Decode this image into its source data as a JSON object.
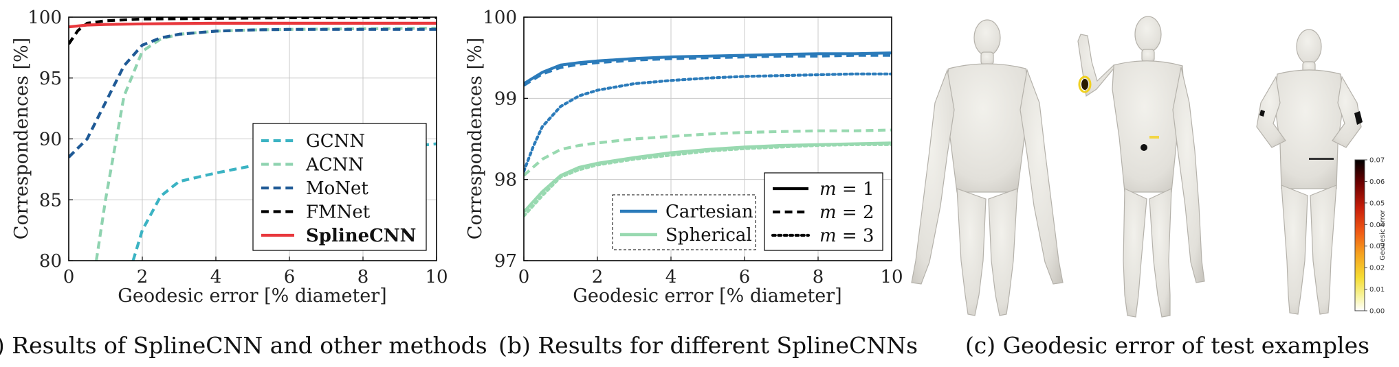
{
  "chart_data": [
    {
      "type": "line",
      "xlabel": "Geodesic error [% diameter]",
      "ylabel": "Correspondences [%]",
      "xlim": [
        0,
        10
      ],
      "ylim": [
        80,
        100
      ],
      "x_ticks": [
        "0",
        "2",
        "4",
        "6",
        "8",
        "10"
      ],
      "y_ticks": [
        "80",
        "85",
        "90",
        "95",
        "100"
      ],
      "grid": true,
      "legend_position": "bottom-right",
      "caption": "(a) Results of SplineCNN and other methods",
      "series": [
        {
          "name": "GCNN",
          "color": "#3bb3c3",
          "dash": "dashed",
          "x": [
            1.75,
            2,
            2.5,
            3,
            4,
            5,
            6,
            7,
            8,
            9,
            10
          ],
          "y": [
            80,
            82.5,
            85.3,
            86.5,
            87.2,
            87.8,
            88.3,
            88.7,
            89.0,
            89.3,
            89.6
          ]
        },
        {
          "name": "ACNN",
          "color": "#8fd3b0",
          "dash": "dashed",
          "x": [
            0.75,
            1,
            1.5,
            2,
            2.5,
            3,
            4,
            5,
            6,
            8,
            10
          ],
          "y": [
            80,
            85,
            93.5,
            97.2,
            98.2,
            98.6,
            98.85,
            98.95,
            99.0,
            99.05,
            99.1
          ]
        },
        {
          "name": "MoNet",
          "color": "#1f5a96",
          "dash": "dashed",
          "x": [
            0,
            0.5,
            1,
            1.5,
            2,
            2.5,
            3,
            4,
            5,
            6,
            8,
            10
          ],
          "y": [
            88.5,
            90,
            93,
            96,
            97.7,
            98.3,
            98.6,
            98.85,
            98.95,
            99.0,
            99.0,
            99.0
          ]
        },
        {
          "name": "FMNet",
          "color": "#000000",
          "dash": "dashed",
          "x": [
            0,
            0.25,
            0.5,
            1,
            2,
            4,
            6,
            8,
            10
          ],
          "y": [
            97.8,
            98.9,
            99.5,
            99.7,
            99.85,
            99.9,
            99.95,
            99.95,
            99.97
          ]
        },
        {
          "name": "SplineCNN",
          "color": "#e8383d",
          "dash": "solid",
          "bold": true,
          "x": [
            0,
            0.5,
            1,
            2,
            4,
            6,
            8,
            10
          ],
          "y": [
            99.2,
            99.35,
            99.4,
            99.45,
            99.5,
            99.5,
            99.5,
            99.5
          ]
        }
      ]
    },
    {
      "type": "line",
      "xlabel": "Geodesic error [% diameter]",
      "ylabel": "Correspondences [%]",
      "xlim": [
        0,
        10
      ],
      "ylim": [
        97,
        100
      ],
      "x_ticks": [
        "0",
        "2",
        "4",
        "6",
        "8",
        "10"
      ],
      "y_ticks": [
        "97",
        "98",
        "99",
        "100"
      ],
      "grid": true,
      "legend_position": "bottom",
      "caption": "(b) Results for different SplineCNNs",
      "color_legend": [
        {
          "name": "Cartesian",
          "color": "#2b7bba"
        },
        {
          "name": "Spherical",
          "color": "#98d9b0"
        }
      ],
      "style_legend": [
        {
          "name": "m = 1",
          "var": "m",
          "eq": "= 1",
          "dash": "solid"
        },
        {
          "name": "m = 2",
          "var": "m",
          "eq": "= 2",
          "dash": "dashed"
        },
        {
          "name": "m = 3",
          "var": "m",
          "eq": "= 3",
          "dash": "dotted"
        }
      ],
      "series": [
        {
          "name": "Cartesian, m = 1",
          "color": "#2b7bba",
          "dash": "solid",
          "x": [
            0,
            0.5,
            1,
            1.5,
            2,
            3,
            4,
            5,
            6,
            7,
            8,
            9,
            10
          ],
          "y": [
            99.18,
            99.32,
            99.41,
            99.44,
            99.46,
            99.49,
            99.51,
            99.52,
            99.53,
            99.54,
            99.55,
            99.55,
            99.56
          ]
        },
        {
          "name": "Cartesian, m = 2",
          "color": "#2b7bba",
          "dash": "dashed",
          "x": [
            0,
            0.5,
            1,
            1.5,
            2,
            3,
            4,
            5,
            6,
            7,
            8,
            9,
            10
          ],
          "y": [
            99.16,
            99.3,
            99.38,
            99.42,
            99.44,
            99.47,
            99.49,
            99.5,
            99.51,
            99.52,
            99.52,
            99.53,
            99.53
          ]
        },
        {
          "name": "Cartesian, m = 3",
          "color": "#2b7bba",
          "dash": "dotted",
          "x": [
            0,
            0.25,
            0.5,
            1,
            1.5,
            2,
            3,
            4,
            5,
            6,
            7,
            8,
            9,
            10
          ],
          "y": [
            98.1,
            98.4,
            98.65,
            98.9,
            99.03,
            99.1,
            99.18,
            99.22,
            99.25,
            99.27,
            99.28,
            99.29,
            99.3,
            99.3
          ]
        },
        {
          "name": "Spherical, m = 1",
          "color": "#98d9b0",
          "dash": "solid",
          "x": [
            0,
            0.5,
            1,
            1.5,
            2,
            3,
            4,
            5,
            6,
            7,
            8,
            9,
            10
          ],
          "y": [
            97.6,
            97.85,
            98.05,
            98.15,
            98.2,
            98.27,
            98.33,
            98.37,
            98.4,
            98.42,
            98.43,
            98.44,
            98.45
          ]
        },
        {
          "name": "Spherical, m = 2",
          "color": "#98d9b0",
          "dash": "dashed",
          "x": [
            0,
            0.5,
            1,
            1.5,
            2,
            3,
            4,
            5,
            6,
            7,
            8,
            9,
            10
          ],
          "y": [
            98.05,
            98.25,
            98.37,
            98.42,
            98.45,
            98.5,
            98.53,
            98.56,
            98.58,
            98.59,
            98.6,
            98.6,
            98.61
          ]
        },
        {
          "name": "Spherical, m = 3",
          "color": "#98d9b0",
          "dash": "dotted",
          "x": [
            0,
            0.5,
            1,
            1.5,
            2,
            3,
            4,
            5,
            6,
            7,
            8,
            9,
            10
          ],
          "y": [
            97.55,
            97.8,
            98.03,
            98.12,
            98.18,
            98.25,
            98.3,
            98.35,
            98.38,
            98.4,
            98.42,
            98.43,
            98.43
          ]
        }
      ]
    }
  ],
  "panel_c": {
    "caption": "(c) Geodesic error of test examples",
    "colorbar": {
      "label": "Geodesic Error",
      "ticks": [
        "0.07",
        "0.06",
        "0.05",
        "0.04",
        "0.03",
        "0.02",
        "0.01",
        "0.00"
      ],
      "colors": [
        "#000000",
        "#6b0000",
        "#c81e0a",
        "#f05a14",
        "#f5a01e",
        "#f5dc32",
        "#f7f39a",
        "#ffffff"
      ]
    },
    "body_color": "#e6e4df",
    "body_shadow": "#bdbab3"
  }
}
